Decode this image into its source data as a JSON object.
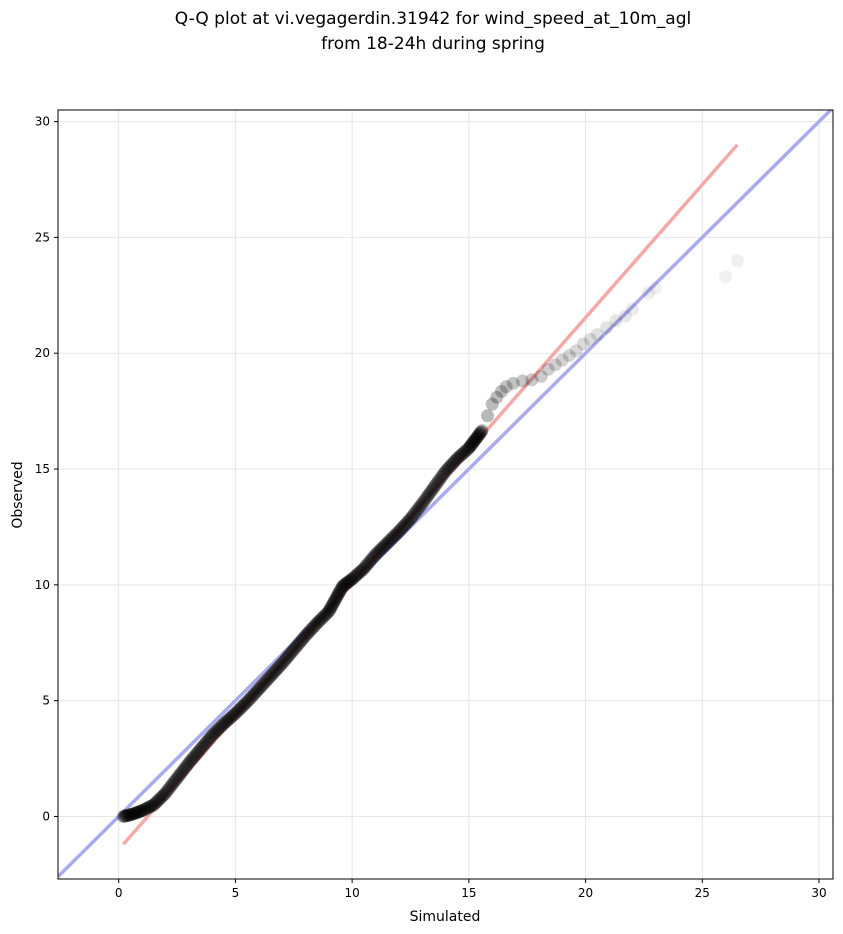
{
  "chart_data": {
    "type": "scatter",
    "title_line1": "Q-Q plot at vi.vegagerdin.31942 for wind_speed_at_10m_agl",
    "title_line2": "from 18-24h during spring",
    "xlabel": "Simulated",
    "ylabel": "Observed",
    "xlim": [
      -2.6,
      30.6
    ],
    "ylim": [
      -2.7,
      30.5
    ],
    "xticks": [
      0,
      5,
      10,
      15,
      20,
      25,
      30
    ],
    "yticks": [
      0,
      5,
      10,
      15,
      20,
      25,
      30
    ],
    "grid": true,
    "legend": "none",
    "colors": {
      "points": "#000000",
      "identity_line": "#aaaaee",
      "fit_line": "#f5a8a8"
    },
    "identity_line": {
      "x": [
        -2.6,
        30.6
      ],
      "y": [
        -2.6,
        30.6
      ]
    },
    "fit_line": {
      "x": [
        0.2,
        26.5
      ],
      "y": [
        -1.2,
        29.0
      ]
    },
    "quantile_curve": {
      "x": [
        0.2,
        0.6,
        1.0,
        1.5,
        2.0,
        2.5,
        3.0,
        3.5,
        4.0,
        4.5,
        5.0,
        5.5,
        6.0,
        6.5,
        7.0,
        7.5,
        8.0,
        8.5,
        9.0,
        9.3,
        9.6,
        10.0,
        10.5,
        11.0,
        11.5,
        12.0,
        12.5,
        13.0,
        13.5,
        14.0,
        14.5,
        15.0,
        15.3,
        15.6
      ],
      "y": [
        0.0,
        0.1,
        0.25,
        0.5,
        1.0,
        1.65,
        2.3,
        2.9,
        3.5,
        4.0,
        4.45,
        4.95,
        5.5,
        6.05,
        6.6,
        7.2,
        7.8,
        8.35,
        8.85,
        9.4,
        9.95,
        10.25,
        10.7,
        11.3,
        11.8,
        12.3,
        12.85,
        13.5,
        14.2,
        14.9,
        15.45,
        15.9,
        16.3,
        16.7
      ]
    },
    "tail_points": {
      "x": [
        15.8,
        16.0,
        16.2,
        16.4,
        16.6,
        16.9,
        17.3,
        17.7,
        18.1,
        18.4,
        18.7,
        19.0,
        19.3,
        19.6,
        19.9,
        20.2,
        20.5,
        20.9,
        21.3,
        21.7,
        22.0,
        22.7,
        23.0,
        26.0,
        26.5
      ],
      "y": [
        17.3,
        17.8,
        18.1,
        18.35,
        18.55,
        18.7,
        18.8,
        18.85,
        19.0,
        19.3,
        19.5,
        19.7,
        19.9,
        20.1,
        20.4,
        20.6,
        20.8,
        21.1,
        21.4,
        21.6,
        21.9,
        22.6,
        22.8,
        23.3,
        24.0
      ]
    }
  }
}
